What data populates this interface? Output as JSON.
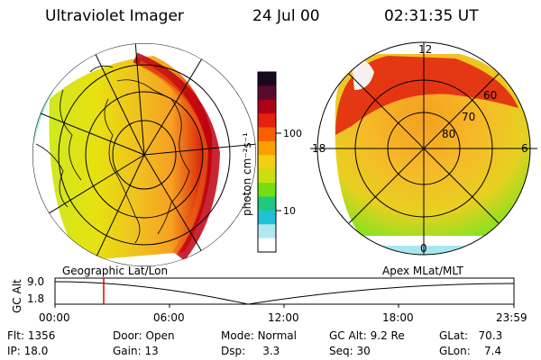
{
  "header": {
    "instrument": "Ultraviolet Imager",
    "date": "24 Jul 00",
    "time": "02:31:35 UT"
  },
  "left_panel": {
    "projection_label": "Geographic Lat/Lon"
  },
  "right_panel": {
    "projection_label": "Apex MLat/MLT",
    "mlt_labels": {
      "top": "12",
      "left": "18",
      "right": "6",
      "bottom": "0"
    },
    "lat_labels": [
      "60",
      "70",
      "80"
    ]
  },
  "colorbar": {
    "unit_label": "photon cm⁻²s⁻¹",
    "tick_labels": [
      "100",
      "10"
    ],
    "colors": [
      "#1a0820",
      "#5a0a2c",
      "#b00018",
      "#e82010",
      "#f86000",
      "#f8a000",
      "#f0d010",
      "#c8e010",
      "#70e010",
      "#20c880",
      "#20c0d8",
      "#b0e8f0",
      "#ffffff"
    ]
  },
  "altitude_plot": {
    "ylabel": "GC Alt",
    "yticks": [
      "9.0",
      "1.8"
    ],
    "xticks": [
      "00:00",
      "06:00",
      "12:00",
      "18:00",
      "23:59"
    ],
    "marker_color": "#e00000"
  },
  "status": {
    "row1": [
      {
        "label": "Flt:",
        "value": "1356"
      },
      {
        "label": "Door:",
        "value": "Open"
      },
      {
        "label": "Mode:",
        "value": "Normal"
      },
      {
        "label": "GC Alt:",
        "value": "9.2 Re"
      },
      {
        "label": "GLat:",
        "value": "70.3"
      }
    ],
    "row2": [
      {
        "label": "IP:",
        "value": "18.0"
      },
      {
        "label": "Gain:",
        "value": "13"
      },
      {
        "label": "Dsp:",
        "value": "3.3"
      },
      {
        "label": "Seq:",
        "value": "30"
      },
      {
        "label": "GLon:",
        "value": "7.4"
      }
    ]
  }
}
